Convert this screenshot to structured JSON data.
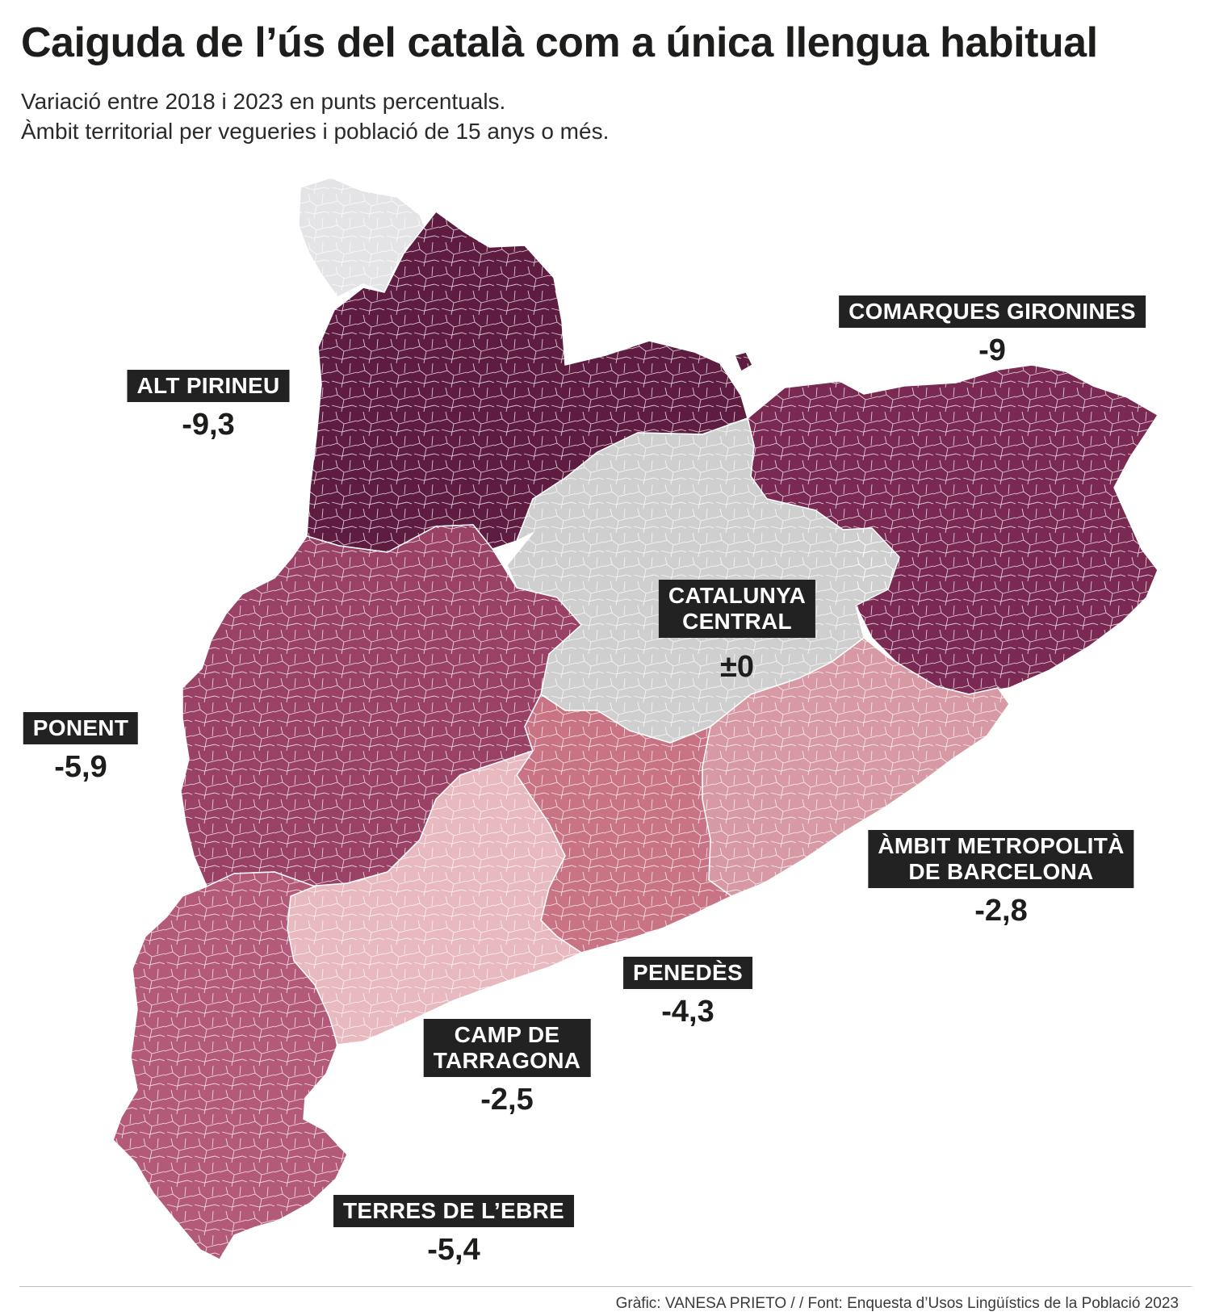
{
  "header": {
    "title": "Caiguda de l’ús del català com a única llengua habitual",
    "subtitle_line1": "Variació entre 2018 i 2023 en punts percentuals.",
    "subtitle_line2": "Àmbit territorial per vegueries i població de 15 anys o més."
  },
  "regions": {
    "alt_pirineu": {
      "name": "ALT PIRINEU",
      "value": "-9,3",
      "change_pp": -9.3,
      "color": "#5e1c40"
    },
    "comarques_gironines": {
      "name": "COMARQUES GIRONINES",
      "value": "-9",
      "change_pp": -9.0,
      "color": "#7a2a52"
    },
    "catalunya_central": {
      "name_line1": "CATALUNYA",
      "name_line2": "CENTRAL",
      "value": "±0",
      "change_pp": 0,
      "color": "#cfcfcf"
    },
    "ponent": {
      "name": "PONENT",
      "value": "-5,9",
      "change_pp": -5.9,
      "color": "#994265"
    },
    "ambit_metropolita": {
      "name_line1": "ÀMBIT METROPOLITÀ",
      "name_line2": "DE BARCELONA",
      "value": "-2,8",
      "change_pp": -2.8,
      "color": "#d79aa4"
    },
    "penedes": {
      "name": "PENEDÈS",
      "value": "-4,3",
      "change_pp": -4.3,
      "color": "#c97485"
    },
    "camp_de_tarragona": {
      "name_line1": "CAMP DE",
      "name_line2": "TARRAGONA",
      "value": "-2,5",
      "change_pp": -2.5,
      "color": "#e8b9bf"
    },
    "terres_de_lebre": {
      "name": "TERRES DE L’EBRE",
      "value": "-5,4",
      "change_pp": -5.4,
      "color": "#b45a79"
    },
    "aran_no_data": {
      "color": "#e4e4e6"
    }
  },
  "colors": {
    "border": "#ffffff",
    "label_bg": "#222222",
    "label_text": "#ffffff"
  },
  "footer": {
    "credit": "Gràfic: VANESA PRIETO / / Font: Enquesta d’Usos Lingüístics de la Població 2023"
  }
}
